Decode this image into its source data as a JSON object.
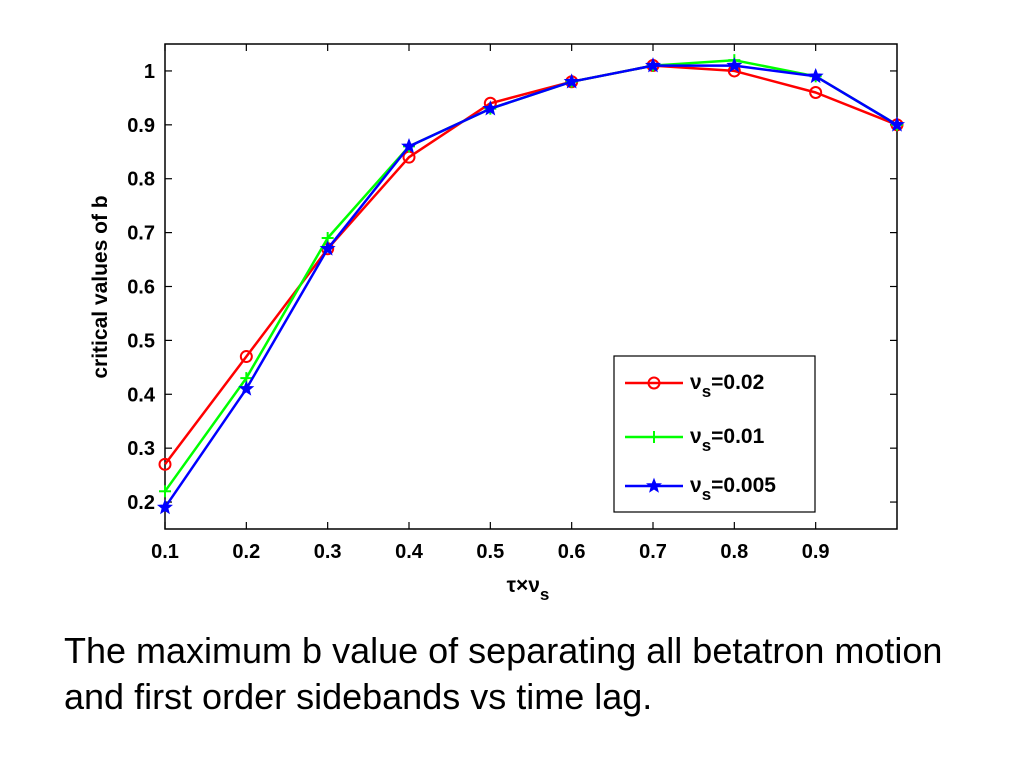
{
  "caption": "The maximum b value of separating all betatron motion and first order sidebands vs time lag.",
  "chart_data": {
    "type": "line",
    "title": "",
    "xlabel": {
      "main": "τ×ν",
      "sub": "s"
    },
    "ylabel": "critical values of b",
    "xlim": [
      0.1,
      1.0
    ],
    "ylim": [
      0.15,
      1.05
    ],
    "xticks": [
      "0.1",
      "0.2",
      "0.3",
      "0.4",
      "0.5",
      "0.6",
      "0.7",
      "0.8",
      "0.9"
    ],
    "yticks": [
      "0.2",
      "0.3",
      "0.4",
      "0.5",
      "0.6",
      "0.7",
      "0.8",
      "0.9",
      "1"
    ],
    "grid": false,
    "legend_position": "lower-right",
    "x": [
      0.1,
      0.2,
      0.3,
      0.4,
      0.5,
      0.6,
      0.7,
      0.8,
      0.9,
      1.0
    ],
    "series": [
      {
        "label_main": "ν",
        "label_sub": "s",
        "label_rest": "=0.02",
        "color": "#ff0000",
        "marker": "circle",
        "values": [
          0.27,
          0.47,
          0.67,
          0.84,
          0.94,
          0.98,
          1.01,
          1.0,
          0.96,
          0.9
        ]
      },
      {
        "label_main": "ν",
        "label_sub": "s",
        "label_rest": "=0.01",
        "color": "#00ff00",
        "marker": "plus",
        "values": [
          0.22,
          0.43,
          0.69,
          0.86,
          0.93,
          0.98,
          1.01,
          1.02,
          0.99,
          0.9
        ]
      },
      {
        "label_main": "ν",
        "label_sub": "s",
        "label_rest": "=0.005",
        "color": "#0000ff",
        "marker": "star",
        "values": [
          0.19,
          0.41,
          0.67,
          0.86,
          0.93,
          0.98,
          1.01,
          1.01,
          0.99,
          0.9
        ]
      }
    ]
  }
}
